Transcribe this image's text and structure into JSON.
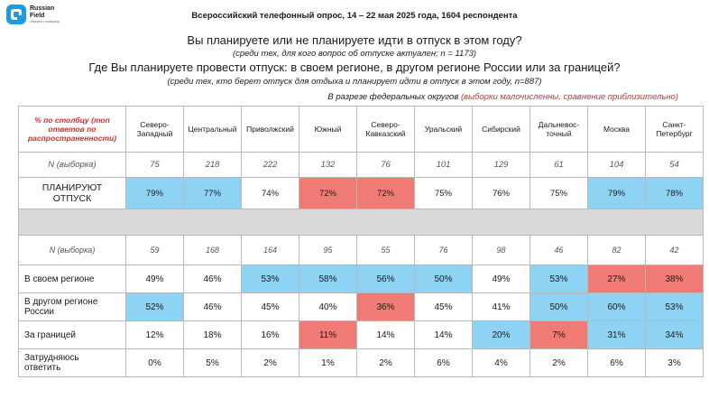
{
  "logo": {
    "line1": "Russian",
    "line2": "Field",
    "sub": "research company"
  },
  "survey_info": "Всероссийский телефонный опрос, 14 – 22 мая 2025 года, 1604 респондента",
  "question1": "Вы планируете или не планируете идти в отпуск в этом году?",
  "question1_note": "(среди тех, для кого вопрос об отпуске актуален; n = 1173)",
  "question2": "Где Вы планируете провести отпуск: в своем регионе, в другом регионе России или за границей?",
  "question2_note": "(среди тех, кто берет отпуск для отдыха и планирует идти в отпуск в этом году, n=887)",
  "breakdown": {
    "prefix": "В разрезе федеральных округов",
    "warning": "(выборки малочисленны, сравнение приблизительно)"
  },
  "table": {
    "header_label": "% по столбцу (топ ответов по распространенности)",
    "columns": [
      {
        "l1": "Северо-",
        "l2": "Западный"
      },
      {
        "l1": "Центральный",
        "l2": ""
      },
      {
        "l1": "Приволжский",
        "l2": ""
      },
      {
        "l1": "Южный",
        "l2": ""
      },
      {
        "l1": "Северо-",
        "l2": "Кавказский"
      },
      {
        "l1": "Уральский",
        "l2": ""
      },
      {
        "l1": "Сибирский",
        "l2": ""
      },
      {
        "l1": "Дальневос-",
        "l2": "точный"
      },
      {
        "l1": "Москва",
        "l2": ""
      },
      {
        "l1": "Санкт-",
        "l2": "Петербург"
      }
    ],
    "n1": {
      "label": "N (выборка)",
      "values": [
        "75",
        "218",
        "222",
        "132",
        "76",
        "101",
        "129",
        "61",
        "104",
        "54"
      ]
    },
    "plan": {
      "label_l1": "ПЛАНИРУЮТ",
      "label_l2": "ОТПУСК",
      "values": [
        "79%",
        "77%",
        "74%",
        "72%",
        "72%",
        "75%",
        "76%",
        "75%",
        "79%",
        "78%"
      ],
      "highlight": [
        "blue",
        "blue",
        "",
        "red",
        "red",
        "",
        "",
        "",
        "blue",
        "blue"
      ]
    },
    "n2": {
      "label": "N (выборка)",
      "values": [
        "59",
        "168",
        "164",
        "95",
        "55",
        "76",
        "98",
        "46",
        "82",
        "42"
      ]
    },
    "rows": [
      {
        "label_l1": "В своем регионе",
        "label_l2": "",
        "values": [
          "49%",
          "46%",
          "53%",
          "58%",
          "56%",
          "50%",
          "49%",
          "53%",
          "27%",
          "38%"
        ],
        "highlight": [
          "",
          "",
          "blue",
          "blue",
          "blue",
          "blue",
          "",
          "blue",
          "red",
          "red"
        ]
      },
      {
        "label_l1": "В другом регионе",
        "label_l2": "России",
        "values": [
          "52%",
          "46%",
          "45%",
          "40%",
          "36%",
          "45%",
          "41%",
          "50%",
          "60%",
          "53%"
        ],
        "highlight": [
          "blue",
          "",
          "",
          "",
          "red",
          "",
          "",
          "blue",
          "blue",
          "blue"
        ]
      },
      {
        "label_l1": "За границей",
        "label_l2": "",
        "values": [
          "12%",
          "18%",
          "16%",
          "11%",
          "14%",
          "14%",
          "20%",
          "7%",
          "31%",
          "34%"
        ],
        "highlight": [
          "",
          "",
          "",
          "red",
          "",
          "",
          "blue",
          "red",
          "blue",
          "blue"
        ]
      },
      {
        "label_l1": "Затрудняюсь",
        "label_l2": "ответить",
        "values": [
          "0%",
          "5%",
          "2%",
          "1%",
          "2%",
          "6%",
          "4%",
          "2%",
          "6%",
          "3%"
        ],
        "highlight": [
          "",
          "",
          "",
          "",
          "",
          "",
          "",
          "",
          "",
          ""
        ]
      }
    ]
  }
}
